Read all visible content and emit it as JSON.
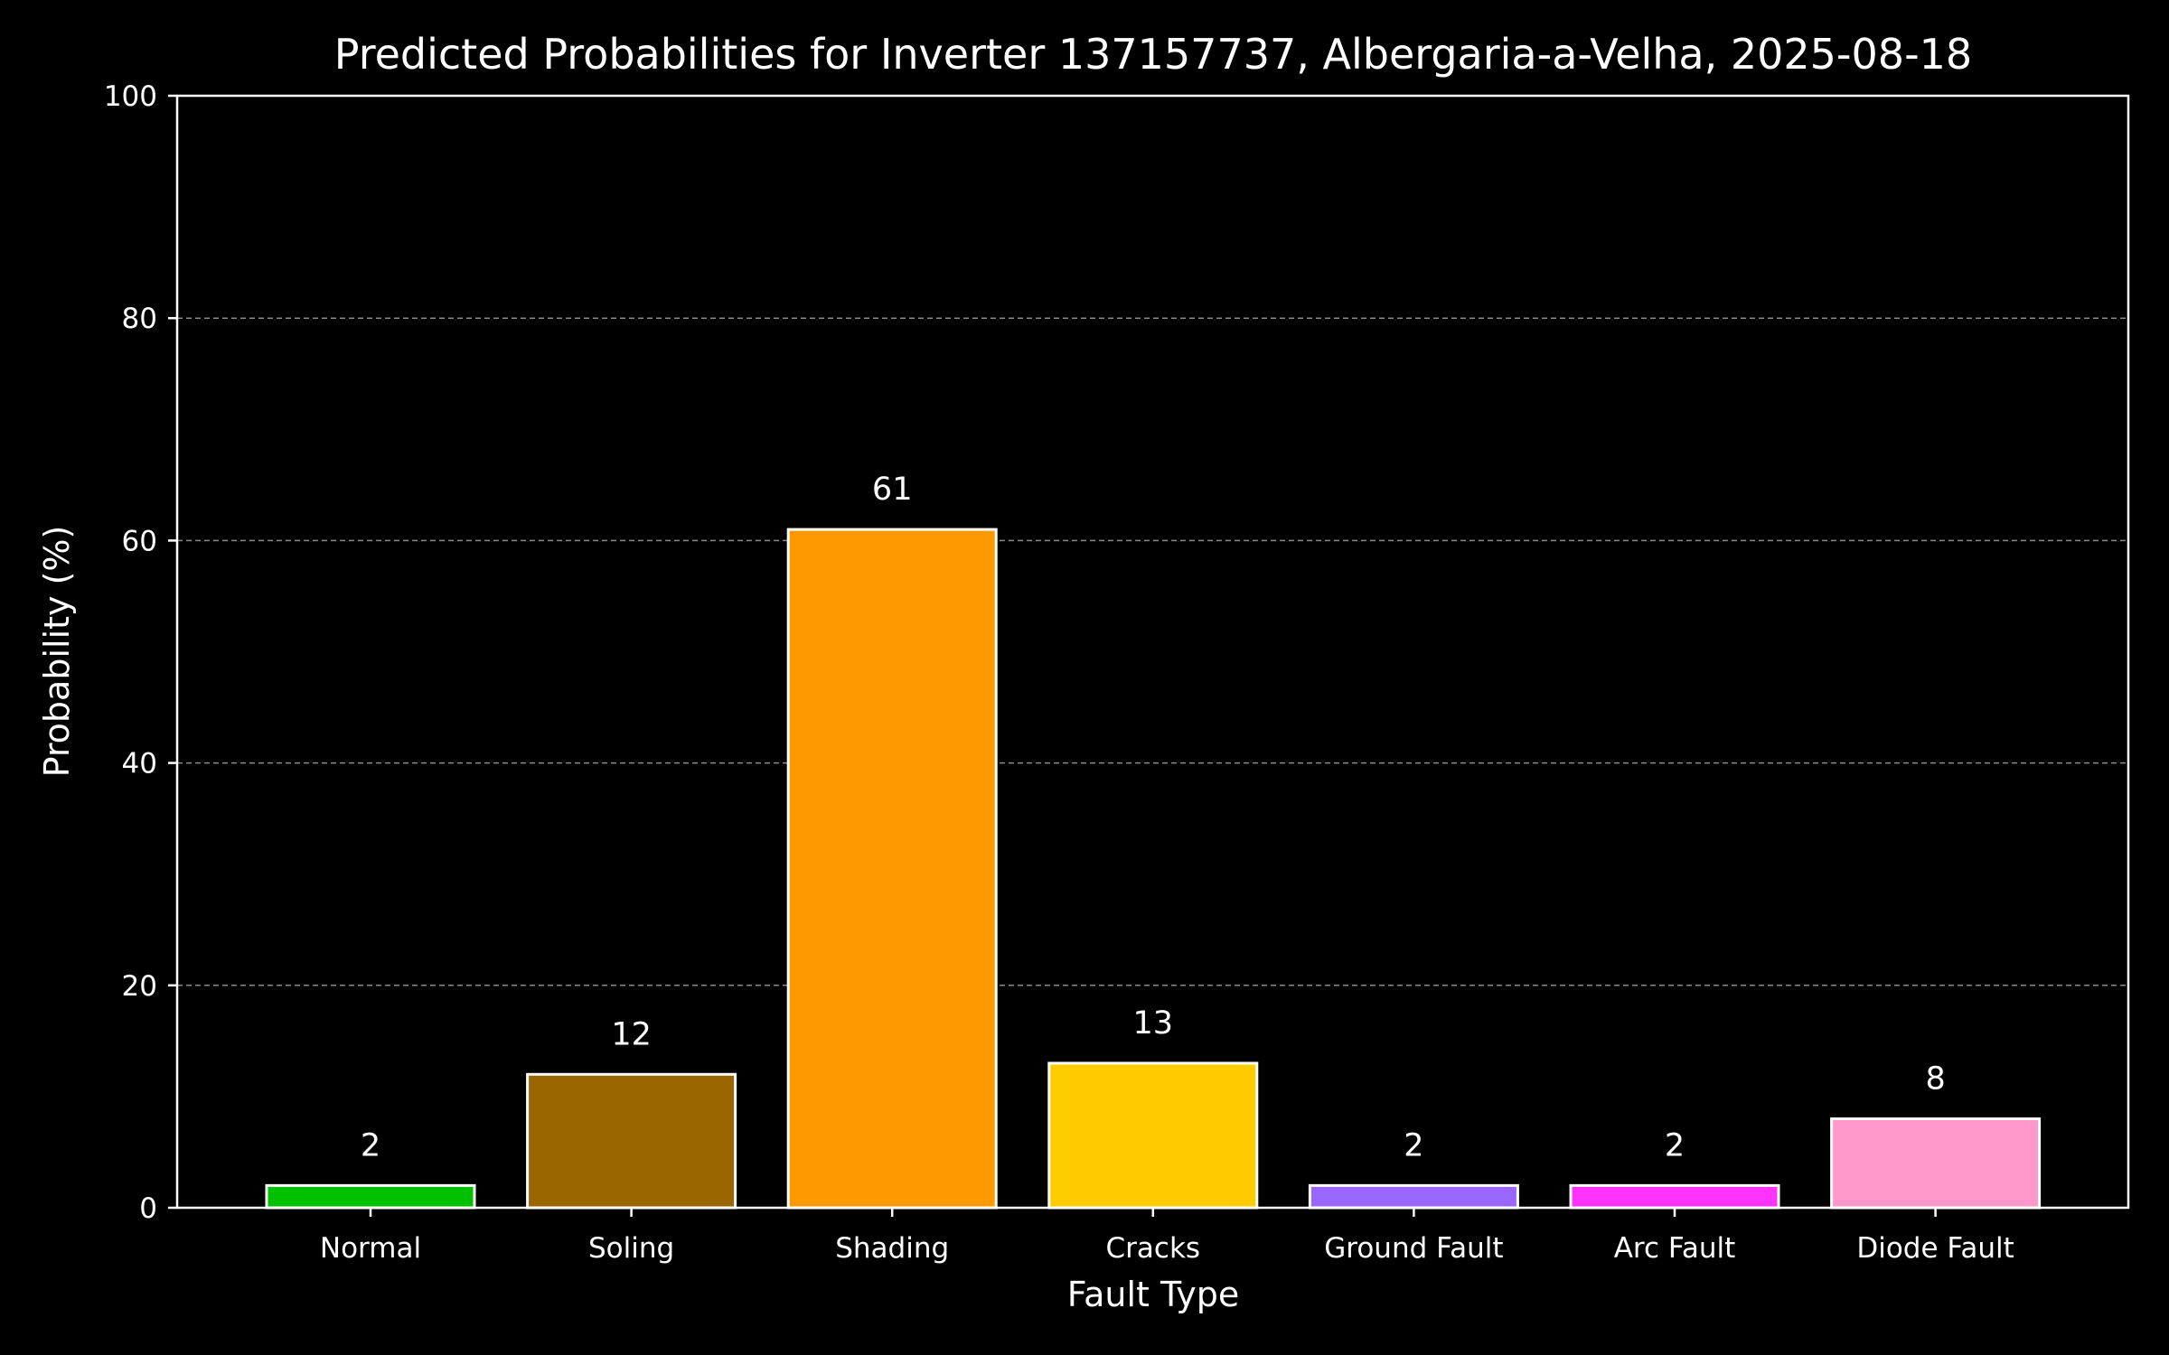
{
  "chart_data": {
    "type": "bar",
    "title": "Predicted Probabilities for Inverter 137157737, Albergaria-a-Velha, 2025-08-18",
    "xlabel": "Fault Type",
    "ylabel": "Probability (%)",
    "categories": [
      "Normal",
      "Soling",
      "Shading",
      "Cracks",
      "Ground Fault",
      "Arc Fault",
      "Diode Fault"
    ],
    "values": [
      2,
      12,
      61,
      13,
      2,
      2,
      8
    ],
    "data_labels": [
      "2",
      "12",
      "61",
      "13",
      "2",
      "2",
      "8"
    ],
    "bar_colors": [
      "#00c000",
      "#996600",
      "#ff9900",
      "#ffcc00",
      "#9966ff",
      "#ff33ff",
      "#ff99cc"
    ],
    "bar_edge_color": "#ffffff",
    "ylim": [
      0,
      100
    ],
    "yticks": [
      0,
      20,
      40,
      60,
      80,
      100
    ],
    "ytick_labels": [
      "0",
      "20",
      "40",
      "60",
      "80",
      "100"
    ],
    "grid": "y-dashed",
    "background": "#000000",
    "legend": "none"
  }
}
